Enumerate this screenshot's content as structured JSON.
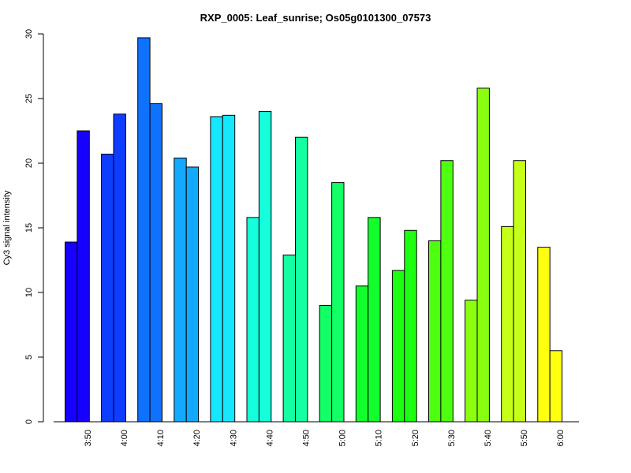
{
  "chart_data": {
    "type": "bar",
    "title": "RXP_0005: Leaf_sunrise; Os05g0101300_07573",
    "xlabel": "",
    "ylabel": "Cy3 signal intensity",
    "ylim": [
      0,
      30
    ],
    "yticks": [
      0,
      5,
      10,
      15,
      20,
      25,
      30
    ],
    "grid": false,
    "legend": "none",
    "categories": [
      "3:50",
      "4:00",
      "4:10",
      "4:20",
      "4:30",
      "4:40",
      "4:50",
      "5:00",
      "5:10",
      "5:20",
      "5:30",
      "5:40",
      "5:50",
      "6:00"
    ],
    "colors": [
      "#1600ff",
      "#0f3dff",
      "#0e72ff",
      "#13a9ff",
      "#15e7ff",
      "#15ffdc",
      "#13ffa1",
      "#12ff65",
      "#13ff2d",
      "#1cff10",
      "#4eff10",
      "#8bff10",
      "#c6ff17",
      "#ffff10"
    ],
    "series": [
      {
        "values": [
          13.9,
          20.7,
          29.7,
          20.4,
          23.6,
          15.8,
          12.9,
          9.0,
          10.5,
          11.7,
          14.0,
          9.4,
          15.1,
          13.5
        ]
      },
      {
        "values": [
          22.5,
          23.8,
          24.6,
          19.7,
          23.7,
          24.0,
          22.0,
          18.5,
          15.8,
          14.8,
          20.2,
          25.8,
          20.2,
          5.5
        ]
      }
    ]
  }
}
